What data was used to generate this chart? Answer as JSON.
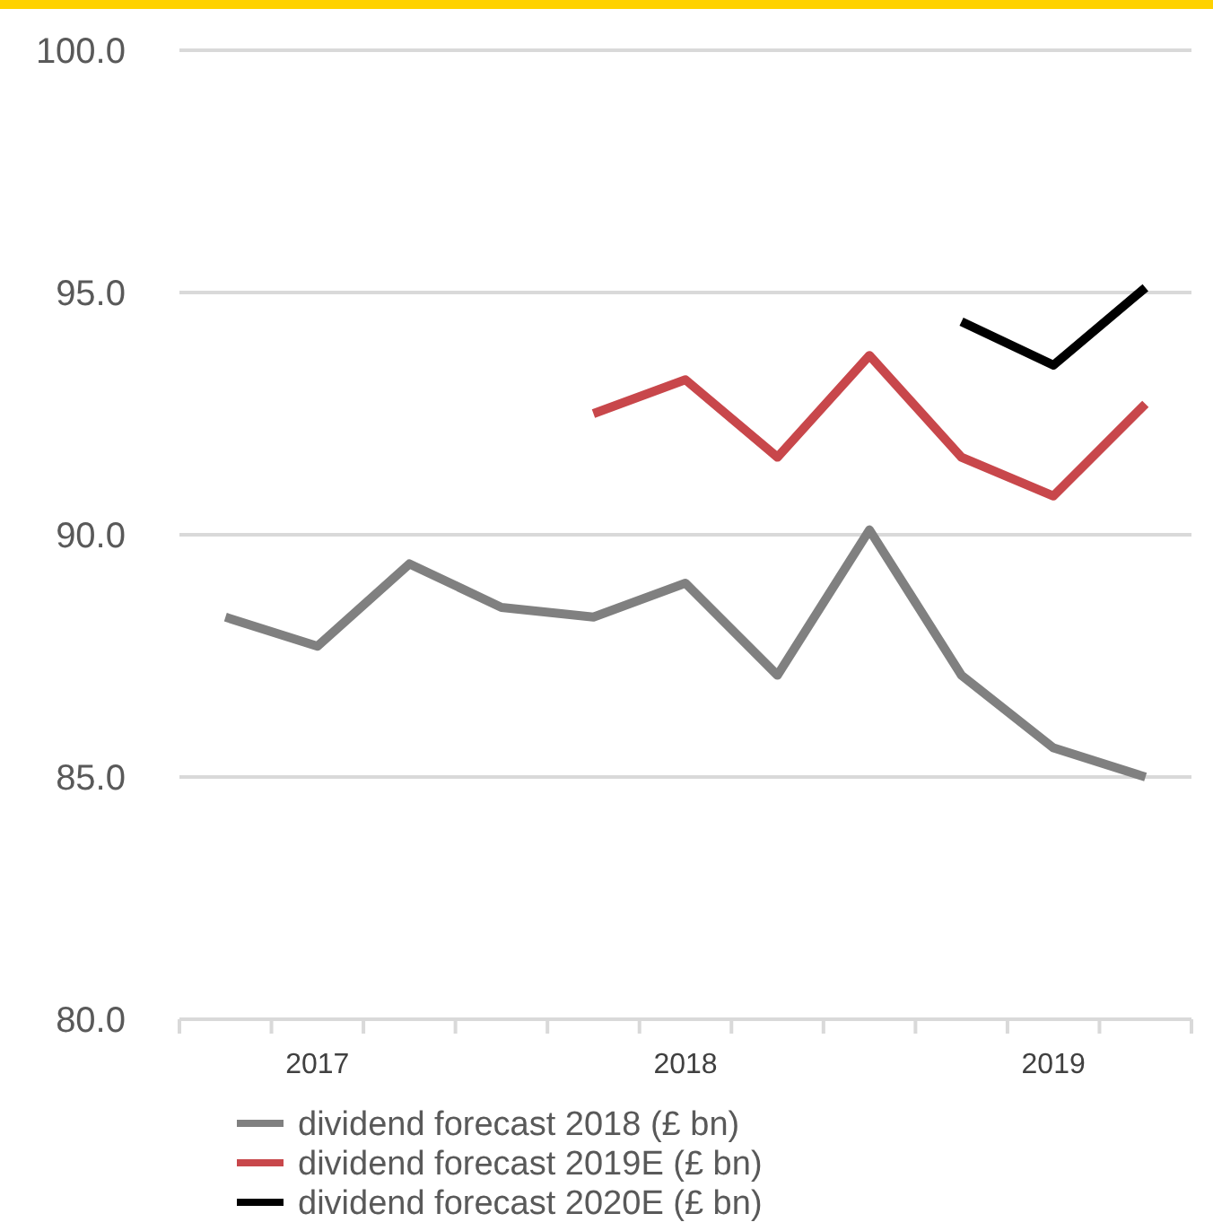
{
  "chart_data": {
    "type": "line",
    "categories": [
      null,
      "2017",
      null,
      null,
      null,
      "2018",
      null,
      null,
      null,
      "2019",
      null
    ],
    "series": [
      {
        "name": "dividend forecast 2018 (£ bn)",
        "color": "#808080",
        "values": [
          88.3,
          87.7,
          89.4,
          88.5,
          88.3,
          89.0,
          87.1,
          90.1,
          87.1,
          85.6,
          85.0
        ]
      },
      {
        "name": "dividend forecast 2019E (£ bn)",
        "color": "#c8474b",
        "values": [
          null,
          null,
          null,
          null,
          92.5,
          93.2,
          91.6,
          93.7,
          91.6,
          90.8,
          92.7
        ]
      },
      {
        "name": "dividend forecast 2020E (£ bn)",
        "color": "#000000",
        "values": [
          null,
          null,
          null,
          null,
          null,
          null,
          null,
          null,
          94.4,
          93.5,
          95.1
        ]
      }
    ],
    "ylim": [
      80,
      100
    ],
    "yticks": [
      {
        "value": 80,
        "label": "80.0"
      },
      {
        "value": 85,
        "label": "85.0"
      },
      {
        "value": 90,
        "label": "90.0"
      },
      {
        "value": 95,
        "label": "95.0"
      },
      {
        "value": 100,
        "label": "100.0"
      }
    ],
    "grid": "y",
    "legend": "bottom",
    "marker": "none",
    "line_style": "solid"
  }
}
